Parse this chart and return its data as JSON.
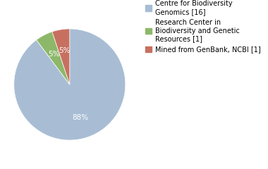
{
  "slices": [
    88,
    5,
    5
  ],
  "labels": [
    "88%",
    "5%",
    "5%"
  ],
  "colors": [
    "#a8bdd4",
    "#8db86a",
    "#c87060"
  ],
  "legend_labels": [
    "Centre for Biodiversity\nGenomics [16]",
    "Research Center in\nBiodiversity and Genetic\nResources [1]",
    "Mined from GenBank, NCBI [1]"
  ],
  "startangle": 90,
  "text_color": "white",
  "font_size": 7.5,
  "legend_fontsize": 7.0,
  "background_color": "#ffffff"
}
